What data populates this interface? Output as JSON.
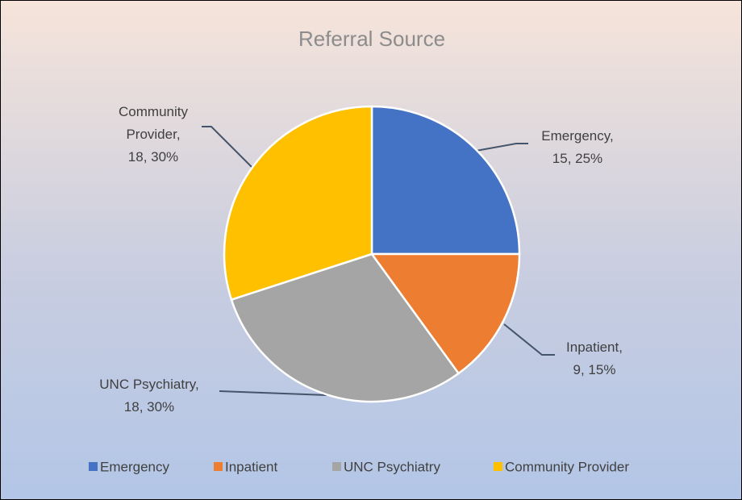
{
  "chart_data": {
    "type": "pie",
    "title": "Referral Source",
    "categories": [
      "Emergency",
      "Inpatient",
      "UNC Psychiatry",
      "Community Provider"
    ],
    "values": [
      15,
      9,
      18,
      18
    ],
    "value_labels": [
      [
        "Emergency,",
        "15, 25%"
      ],
      [
        "Inpatient,",
        "9, 15%"
      ],
      [
        "UNC Psychiatry,",
        "18, 30%"
      ],
      [
        "Community",
        "Provider,",
        "18, 30%"
      ]
    ],
    "colors": [
      "#4472c4",
      "#ed7d31",
      "#a5a5a5",
      "#ffc000"
    ],
    "legend": "bottom"
  }
}
